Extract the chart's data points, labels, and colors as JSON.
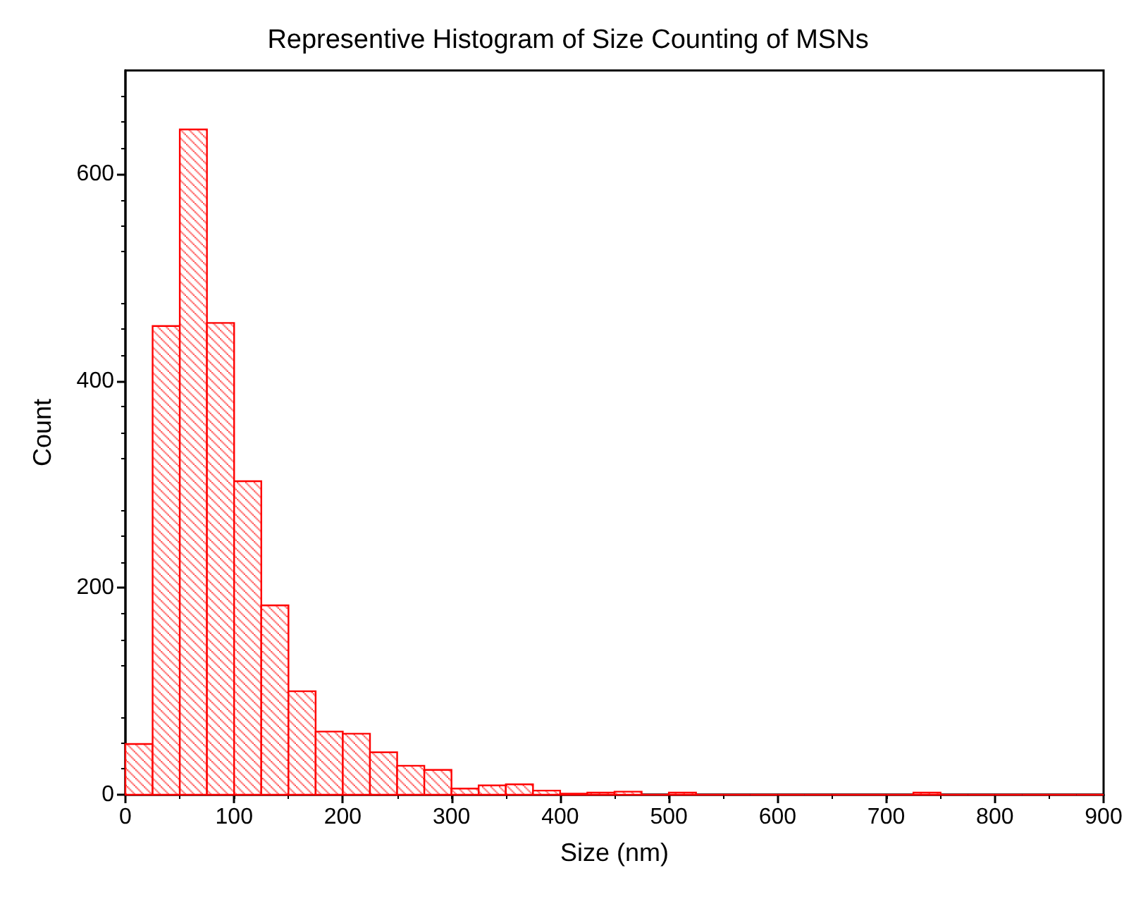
{
  "chart_data": {
    "type": "histogram",
    "title": "Representive Histogram of Size Counting of MSNs",
    "xlabel": "Size (nm)",
    "ylabel": "Count",
    "bins": [
      0,
      25,
      50,
      75,
      100,
      125,
      150,
      175,
      200,
      225,
      250,
      275,
      300,
      325,
      350,
      375,
      400,
      425,
      450,
      475,
      500,
      525,
      550,
      575,
      600,
      625,
      650,
      675,
      700,
      725,
      750,
      775,
      800,
      825,
      850,
      875,
      900
    ],
    "values": [
      49,
      453,
      643,
      456,
      303,
      183,
      100,
      61,
      59,
      41,
      28,
      24,
      6,
      9,
      10,
      4,
      1,
      2,
      3,
      0,
      2,
      0,
      0,
      0,
      0,
      0,
      0,
      0,
      0,
      2,
      0,
      0,
      0,
      0,
      0,
      0
    ],
    "color": "#ff0000",
    "xlim": [
      0,
      900
    ],
    "xticks": [
      0,
      100,
      200,
      300,
      400,
      500,
      600,
      700,
      800,
      900
    ],
    "ylim": [
      0,
      700
    ],
    "yticks": [
      0,
      200,
      400,
      600
    ],
    "grid": false
  }
}
